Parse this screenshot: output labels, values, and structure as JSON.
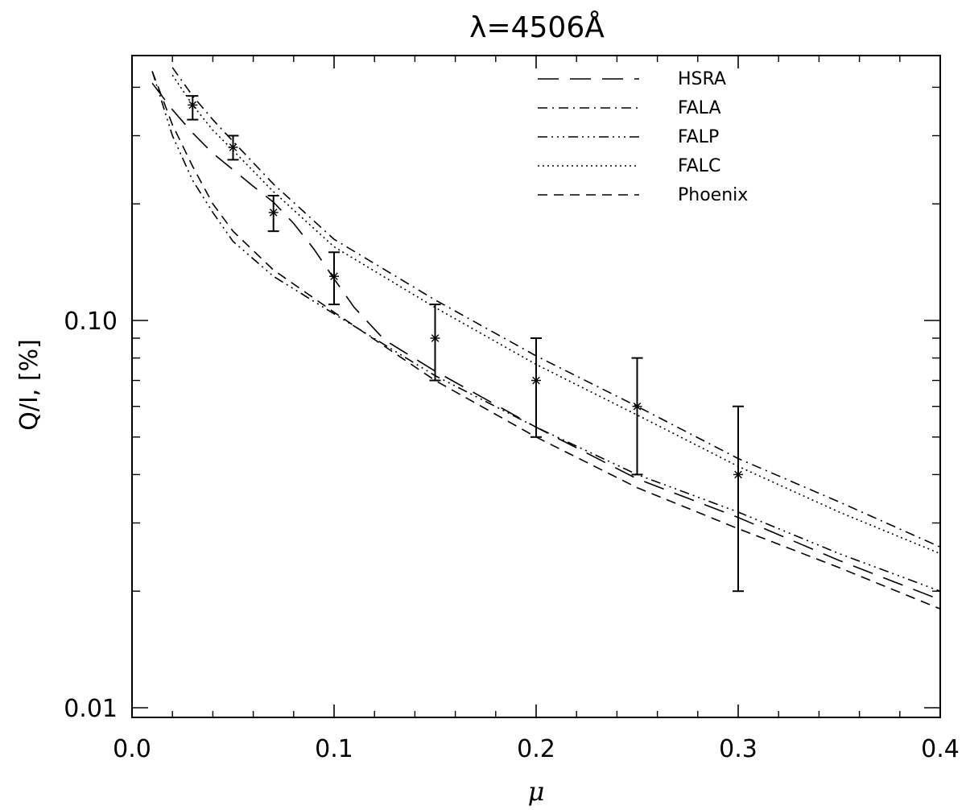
{
  "chart_data": {
    "type": "line",
    "title": "λ=4506Å",
    "xlabel": "μ",
    "ylabel": "Q/I, [%]",
    "xlim": [
      0.0,
      0.4
    ],
    "ylim": [
      0.01,
      0.45
    ],
    "yscale": "log",
    "x_ticks": [
      "0.0",
      "0.1",
      "0.2",
      "0.3",
      "0.4"
    ],
    "y_ticks": [
      "0.01",
      "0.10"
    ],
    "grid": false,
    "legend_position": "top-right",
    "series": [
      {
        "name": "HSRA",
        "style": "longdash",
        "x": [
          0.01,
          0.02,
          0.03,
          0.04,
          0.05,
          0.06,
          0.07,
          0.08,
          0.09,
          0.1,
          0.11,
          0.125,
          0.15,
          0.2,
          0.25,
          0.3,
          0.35,
          0.4
        ],
        "y": [
          0.41,
          0.35,
          0.305,
          0.27,
          0.245,
          0.222,
          0.202,
          0.178,
          0.153,
          0.128,
          0.108,
          0.089,
          0.074,
          0.053,
          0.039,
          0.031,
          0.024,
          0.019
        ]
      },
      {
        "name": "FALA",
        "style": "dashdot",
        "x": [
          0.02,
          0.03,
          0.04,
          0.05,
          0.07,
          0.1,
          0.15,
          0.2,
          0.25,
          0.3,
          0.35,
          0.4
        ],
        "y": [
          0.45,
          0.38,
          0.33,
          0.29,
          0.225,
          0.162,
          0.113,
          0.081,
          0.06,
          0.044,
          0.034,
          0.026
        ]
      },
      {
        "name": "FALP",
        "style": "dashdotdotdot",
        "x": [
          0.01,
          0.02,
          0.03,
          0.04,
          0.05,
          0.07,
          0.1,
          0.15,
          0.2,
          0.25,
          0.3,
          0.35,
          0.4
        ],
        "y": [
          0.44,
          0.3,
          0.23,
          0.19,
          0.16,
          0.13,
          0.104,
          0.072,
          0.053,
          0.04,
          0.032,
          0.025,
          0.02
        ]
      },
      {
        "name": "FALC",
        "style": "dotted",
        "x": [
          0.02,
          0.03,
          0.04,
          0.05,
          0.07,
          0.1,
          0.15,
          0.2,
          0.25,
          0.3,
          0.35,
          0.4
        ],
        "y": [
          0.43,
          0.36,
          0.31,
          0.275,
          0.215,
          0.155,
          0.108,
          0.077,
          0.057,
          0.042,
          0.032,
          0.025
        ]
      },
      {
        "name": "Phoenix",
        "style": "shortdash",
        "x": [
          0.01,
          0.02,
          0.03,
          0.04,
          0.05,
          0.07,
          0.1,
          0.15,
          0.2,
          0.25,
          0.3,
          0.35,
          0.4
        ],
        "y": [
          0.44,
          0.32,
          0.25,
          0.2,
          0.17,
          0.135,
          0.105,
          0.07,
          0.05,
          0.037,
          0.029,
          0.023,
          0.018
        ]
      }
    ],
    "observations": {
      "x": [
        0.03,
        0.05,
        0.07,
        0.1,
        0.15,
        0.2,
        0.25,
        0.3
      ],
      "y": [
        0.36,
        0.28,
        0.19,
        0.13,
        0.09,
        0.07,
        0.06,
        0.04
      ],
      "y_low": [
        0.33,
        0.26,
        0.17,
        0.11,
        0.07,
        0.05,
        0.04,
        0.02
      ],
      "y_high": [
        0.38,
        0.3,
        0.21,
        0.15,
        0.11,
        0.09,
        0.08,
        0.06
      ]
    }
  }
}
